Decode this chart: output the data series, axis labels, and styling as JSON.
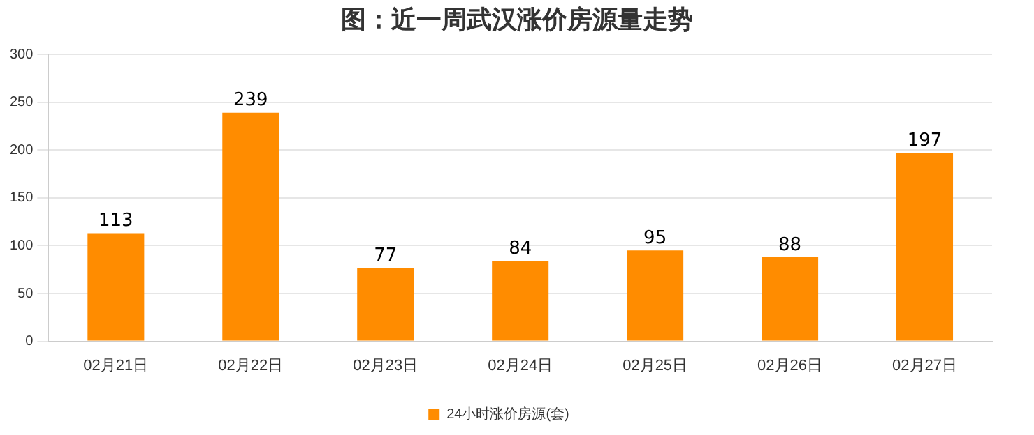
{
  "chart_data": {
    "type": "bar",
    "title": "图：近一周武汉涨价房源量走势",
    "categories": [
      "02月21日",
      "02月22日",
      "02月23日",
      "02月24日",
      "02月25日",
      "02月26日",
      "02月27日"
    ],
    "series": [
      {
        "name": "24小时涨价房源(套)",
        "color": "#ff8c00",
        "values": [
          113,
          239,
          77,
          84,
          95,
          88,
          197
        ]
      }
    ],
    "ylim": [
      0,
      300
    ],
    "yticks": [
      0,
      50,
      100,
      150,
      200,
      250,
      300
    ],
    "grid": "y",
    "legend": "bottom",
    "data_labels": true
  }
}
